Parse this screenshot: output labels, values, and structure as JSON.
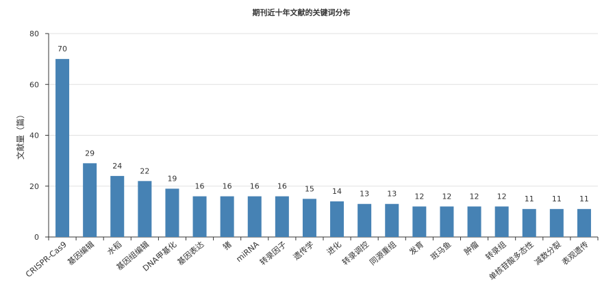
{
  "chart_data": {
    "type": "bar",
    "title": "期刊近十年文献的关键词分布",
    "xlabel": "",
    "ylabel": "文献量（篇）",
    "ylim": [
      0,
      80
    ],
    "yticks": [
      0,
      20,
      40,
      60,
      80
    ],
    "grid": true,
    "bar_color": "#4682b4",
    "categories": [
      "CRISPR-Cas9",
      "基因编辑",
      "水稻",
      "基因组编辑",
      "DNA甲基化",
      "基因表达",
      "猪",
      "miRNA",
      "转录因子",
      "遗传学",
      "进化",
      "转录调控",
      "同源重组",
      "发育",
      "斑马鱼",
      "肿瘤",
      "转录组",
      "单核苷酸多态性",
      "减数分裂",
      "表观遗传"
    ],
    "values": [
      70,
      29,
      24,
      22,
      19,
      16,
      16,
      16,
      16,
      15,
      14,
      13,
      13,
      12,
      12,
      12,
      12,
      11,
      11,
      11
    ]
  }
}
